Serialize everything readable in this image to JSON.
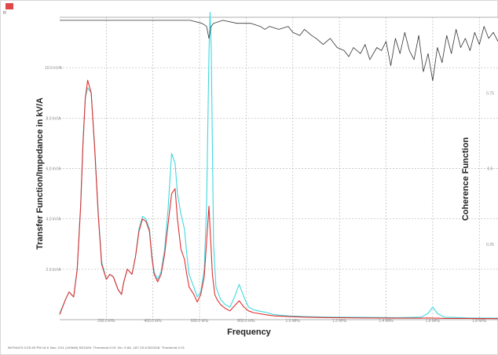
{
  "window": {
    "corner_text": "fF",
    "status_text": "IM/Tek/23 0:25:45 PM  ULK  Nuc: D11  (100kW)     B22426: Threshold 0.01    Vin: 0.66  -187.25 A     B22426: Threshold 0.01"
  },
  "colors": {
    "background": "#ffffff",
    "grid": "#b8b8b8",
    "transfer_red": "#e03030",
    "transfer_cyan": "#40d8e0",
    "coherence": "#333333",
    "baseline": "#999999"
  },
  "chart_data": {
    "type": "line",
    "xlabel": "Frequency",
    "ylabel_left": "Transfer Function/Impedance in kV/A",
    "ylabel_right": "Coherence Function",
    "x_ticks": [
      "200.0 kHz",
      "400.0 kHz",
      "600.0 kHz",
      "800.0 kHz",
      "1.0 MHz",
      "1.2 MHz",
      "1.4 MHz",
      "1.6 MHz",
      "1.8 MHz"
    ],
    "x_tick_values": [
      200,
      400,
      600,
      800,
      1000,
      1200,
      1400,
      1600,
      1800
    ],
    "xlim": [
      0,
      1880
    ],
    "y_left_ticks": [
      "2.0 kV/A",
      "4.0 kV/A",
      "6.0 kV/A",
      "8.0 kV/A",
      "10.0 kV/A"
    ],
    "y_left_tick_values": [
      2,
      4,
      6,
      8,
      10
    ],
    "ylim_left": [
      0,
      12
    ],
    "y_right_ticks": [
      "0.25",
      "0.5",
      "0.75"
    ],
    "y_right_tick_values": [
      0.25,
      0.5,
      0.75
    ],
    "ylim_right": [
      0,
      1.0
    ],
    "grid": true,
    "series": [
      {
        "axis": "left",
        "color": "#e03030",
        "x": [
          0,
          25,
          40,
          60,
          75,
          90,
          100,
          110,
          120,
          135,
          150,
          165,
          180,
          200,
          215,
          230,
          250,
          265,
          275,
          290,
          310,
          325,
          340,
          355,
          370,
          385,
          395,
          405,
          420,
          435,
          450,
          465,
          480,
          495,
          505,
          520,
          535,
          545,
          555,
          575,
          590,
          605,
          620,
          640,
          655,
          665,
          675,
          690,
          710,
          730,
          750,
          770,
          790,
          810,
          830,
          850,
          880,
          920,
          980,
          1050,
          1150,
          1300,
          1450,
          1550,
          1580,
          1600,
          1620,
          1650,
          1750,
          1880
        ],
        "values": [
          0.2,
          0.8,
          1.1,
          0.9,
          2.0,
          4.5,
          7.0,
          8.8,
          9.5,
          9.0,
          6.8,
          4.2,
          2.2,
          1.6,
          1.8,
          1.7,
          1.2,
          1.0,
          1.5,
          2.0,
          1.8,
          2.5,
          3.5,
          4.0,
          3.9,
          3.5,
          2.5,
          1.8,
          1.5,
          1.8,
          2.6,
          3.8,
          5.0,
          5.2,
          4.0,
          2.8,
          2.4,
          1.8,
          1.3,
          1.0,
          0.7,
          1.0,
          1.7,
          4.5,
          1.8,
          1.0,
          0.8,
          0.6,
          0.45,
          0.35,
          0.55,
          0.75,
          0.5,
          0.35,
          0.28,
          0.25,
          0.2,
          0.15,
          0.12,
          0.1,
          0.08,
          0.07,
          0.06,
          0.06,
          0.07,
          0.06,
          0.06,
          0.05,
          0.05,
          0.04
        ]
      },
      {
        "axis": "left",
        "color": "#40d8e0",
        "x": [
          0,
          25,
          40,
          60,
          75,
          90,
          100,
          110,
          120,
          135,
          150,
          165,
          180,
          200,
          215,
          230,
          250,
          265,
          275,
          290,
          310,
          325,
          340,
          355,
          370,
          385,
          395,
          405,
          420,
          435,
          450,
          465,
          480,
          495,
          505,
          520,
          535,
          545,
          555,
          575,
          590,
          605,
          620,
          630,
          640,
          645,
          650,
          660,
          670,
          690,
          710,
          730,
          750,
          770,
          790,
          810,
          830,
          850,
          880,
          920,
          980,
          1050,
          1150,
          1300,
          1450,
          1550,
          1580,
          1600,
          1620,
          1650,
          1750,
          1880
        ],
        "values": [
          0.25,
          0.8,
          1.1,
          0.9,
          2.0,
          4.6,
          7.1,
          8.8,
          9.2,
          9.0,
          6.9,
          4.3,
          2.3,
          1.6,
          1.8,
          1.7,
          1.2,
          1.0,
          1.5,
          2.0,
          1.8,
          2.5,
          3.6,
          4.1,
          4.0,
          3.6,
          2.6,
          1.9,
          1.6,
          1.9,
          2.8,
          4.4,
          6.6,
          6.2,
          5.0,
          4.2,
          3.6,
          2.6,
          1.8,
          1.3,
          0.9,
          1.1,
          2.0,
          4.5,
          10.5,
          12.2,
          10.8,
          3.0,
          1.3,
          0.8,
          0.6,
          0.5,
          0.9,
          1.4,
          0.9,
          0.5,
          0.4,
          0.35,
          0.3,
          0.2,
          0.15,
          0.12,
          0.1,
          0.09,
          0.08,
          0.1,
          0.25,
          0.5,
          0.25,
          0.1,
          0.07,
          0.06
        ]
      },
      {
        "axis": "right",
        "color": "#333333",
        "x": [
          0,
          200,
          400,
          560,
          610,
          630,
          640,
          650,
          660,
          700,
          760,
          820,
          860,
          880,
          900,
          940,
          980,
          1000,
          1030,
          1050,
          1080,
          1100,
          1130,
          1160,
          1190,
          1220,
          1240,
          1260,
          1290,
          1310,
          1330,
          1360,
          1380,
          1400,
          1420,
          1440,
          1460,
          1480,
          1500,
          1520,
          1540,
          1560,
          1580,
          1600,
          1620,
          1640,
          1660,
          1680,
          1700,
          1720,
          1740,
          1760,
          1780,
          1800,
          1820,
          1840,
          1860,
          1880
        ],
        "values": [
          0.99,
          0.99,
          0.99,
          0.99,
          0.98,
          0.97,
          0.93,
          0.97,
          0.98,
          0.99,
          0.98,
          0.98,
          0.97,
          0.96,
          0.97,
          0.96,
          0.97,
          0.95,
          0.94,
          0.96,
          0.94,
          0.93,
          0.91,
          0.93,
          0.9,
          0.89,
          0.87,
          0.9,
          0.88,
          0.91,
          0.86,
          0.9,
          0.89,
          0.92,
          0.84,
          0.93,
          0.88,
          0.95,
          0.89,
          0.86,
          0.94,
          0.82,
          0.88,
          0.79,
          0.9,
          0.85,
          0.94,
          0.88,
          0.96,
          0.9,
          0.93,
          0.89,
          0.95,
          0.91,
          0.97,
          0.93,
          0.95,
          0.92
        ]
      }
    ]
  }
}
